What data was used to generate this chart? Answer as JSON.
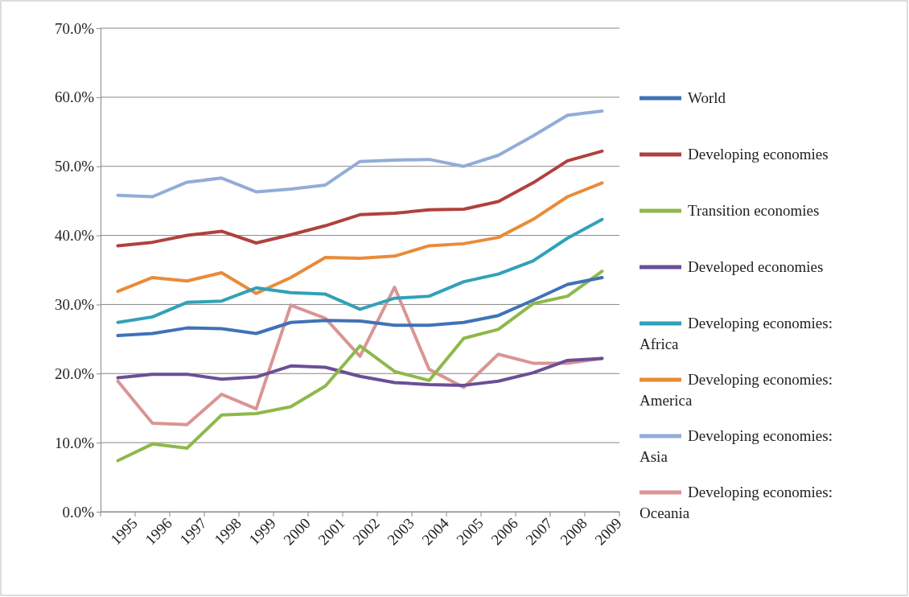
{
  "chart_data": {
    "type": "line",
    "categories": [
      "1995",
      "1996",
      "1997",
      "1998",
      "1999",
      "2000",
      "2001",
      "2002",
      "2003",
      "2004",
      "2005",
      "2006",
      "2007",
      "2008",
      "2009"
    ],
    "ylim": [
      0,
      70
    ],
    "yticks": [
      {
        "value": 0,
        "label": "0.0%"
      },
      {
        "value": 10,
        "label": "10.0%"
      },
      {
        "value": 20,
        "label": "20.0%"
      },
      {
        "value": 30,
        "label": "30.0%"
      },
      {
        "value": 40,
        "label": "40.0%"
      },
      {
        "value": 50,
        "label": "50.0%"
      },
      {
        "value": 60,
        "label": "60.0%"
      },
      {
        "value": 70,
        "label": "70.0%"
      }
    ],
    "grid": "y",
    "legend": "right",
    "marker": "none",
    "line_style": "solid",
    "series": [
      {
        "name": "World",
        "color": "#3f72b8",
        "values": [
          25.5,
          25.8,
          26.6,
          26.5,
          25.8,
          27.4,
          27.7,
          27.6,
          27.0,
          27.0,
          27.4,
          28.4,
          30.6,
          32.9,
          33.9
        ]
      },
      {
        "name": "Developing economies",
        "color": "#b0413e",
        "values": [
          38.5,
          39.0,
          40.0,
          40.6,
          38.9,
          40.1,
          41.4,
          43.0,
          43.2,
          43.7,
          43.8,
          44.9,
          47.6,
          50.8,
          52.2
        ]
      },
      {
        "name": "Transition economies",
        "color": "#8fb84a",
        "values": [
          7.4,
          9.8,
          9.2,
          14.0,
          14.2,
          15.2,
          18.2,
          24.0,
          20.3,
          19.0,
          25.1,
          26.4,
          30.1,
          31.2,
          34.8
        ]
      },
      {
        "name": "Developed economies",
        "color": "#6a4f96",
        "values": [
          19.4,
          19.9,
          19.9,
          19.2,
          19.5,
          21.1,
          20.9,
          19.6,
          18.7,
          18.4,
          18.3,
          18.9,
          20.1,
          21.9,
          22.2
        ]
      },
      {
        "name": "Developing economies: Africa",
        "color": "#31a1b8",
        "values": [
          27.4,
          28.2,
          30.3,
          30.5,
          32.4,
          31.7,
          31.5,
          29.3,
          30.9,
          31.2,
          33.3,
          34.4,
          36.3,
          39.6,
          42.3
        ]
      },
      {
        "name": "Developing economies: America",
        "color": "#e98b39",
        "values": [
          31.9,
          33.9,
          33.4,
          34.6,
          31.6,
          33.9,
          36.8,
          36.7,
          37.0,
          38.5,
          38.8,
          39.7,
          42.3,
          45.6,
          47.6
        ]
      },
      {
        "name": "Developing economies: Asia",
        "color": "#93acd8",
        "values": [
          45.8,
          45.6,
          47.7,
          48.3,
          46.3,
          46.7,
          47.3,
          50.7,
          50.9,
          51.0,
          50.0,
          51.6,
          54.4,
          57.4,
          58.0
        ]
      },
      {
        "name": "Developing economies: Oceania",
        "color": "#d99594",
        "values": [
          18.9,
          12.8,
          12.6,
          17.0,
          14.9,
          29.9,
          28.0,
          22.5,
          32.5,
          20.6,
          18.0,
          22.8,
          21.5,
          21.5,
          22.2
        ]
      }
    ]
  }
}
